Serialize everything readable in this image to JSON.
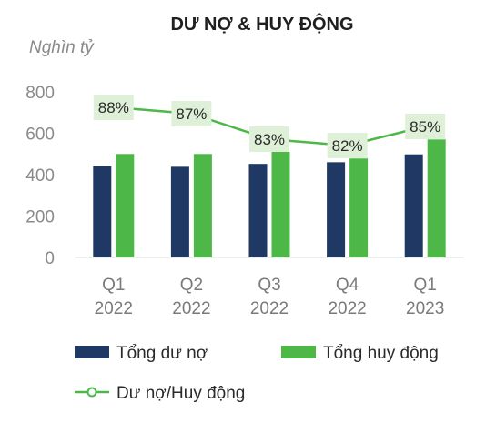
{
  "chart_data": {
    "type": "bar",
    "title": "DƯ NỢ & HUY ĐỘNG",
    "unit_label": "Nghìn tỷ",
    "categories": [
      [
        "Q1",
        "2022"
      ],
      [
        "Q2",
        "2022"
      ],
      [
        "Q3",
        "2022"
      ],
      [
        "Q4",
        "2022"
      ],
      [
        "Q1",
        "2023"
      ]
    ],
    "y_ticks": [
      "0",
      "200",
      "400",
      "600",
      "800"
    ],
    "ylim": [
      0,
      800
    ],
    "series": [
      {
        "name": "Tổng dư nợ",
        "values": [
          440,
          438,
          452,
          460,
          498
        ],
        "color": "#1f3864"
      },
      {
        "name": "Tổng huy động",
        "values": [
          500,
          500,
          510,
          478,
          570
        ],
        "color": "#4db848"
      }
    ],
    "ratio_series": {
      "name": "Dư nợ/Huy động",
      "values": [
        88,
        87,
        83,
        82,
        85
      ],
      "labels": [
        "88%",
        "87%",
        "83%",
        "82%",
        "85%"
      ],
      "color": "#4db848",
      "label_bg": "#dff0d8"
    },
    "legend": [
      "Tổng dư nợ",
      "Tổng huy động",
      "Dư nợ/Huy động"
    ],
    "legend_position": "bottom",
    "grid": false
  }
}
